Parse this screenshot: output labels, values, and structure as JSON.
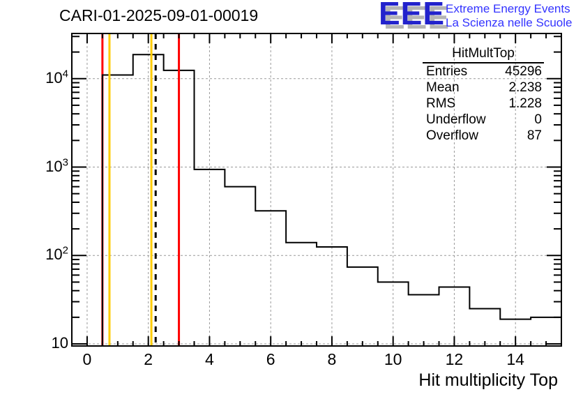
{
  "title": "CARI-01-2025-09-01-00019",
  "logo": {
    "acronym": "EEE",
    "line1": "Extreme Energy Events",
    "line2": "La Scienza nelle Scuole",
    "acronym_color": "#2222cc",
    "shadow_color": "#b5b5b5",
    "text_color": "#3333ff"
  },
  "stats": {
    "title": "HitMultTop",
    "rows": [
      {
        "label": "Entries",
        "value": "45296"
      },
      {
        "label": "Mean",
        "value": "2.238"
      },
      {
        "label": "RMS",
        "value": "1.228"
      },
      {
        "label": "Underflow",
        "value": "0"
      },
      {
        "label": "Overflow",
        "value": "87"
      }
    ]
  },
  "chart_data": {
    "type": "bar",
    "subtype": "step-histogram",
    "title": "CARI-01-2025-09-01-00019",
    "xlabel": "Hit multiplicity Top",
    "ylabel": "",
    "x_range": [
      -0.5,
      15.5
    ],
    "y_scale": "log",
    "y_range": [
      9.5,
      32000
    ],
    "bin_width": 1,
    "bin_centers": [
      0,
      1,
      2,
      3,
      4,
      5,
      6,
      7,
      8,
      9,
      10,
      11,
      12,
      13,
      14,
      15
    ],
    "counts": [
      0,
      11000,
      18700,
      12400,
      940,
      600,
      320,
      140,
      125,
      74,
      50,
      36,
      44,
      25,
      19,
      20
    ],
    "grid": true,
    "grid_color": "#999999",
    "line_color": "#000000",
    "x_ticks": [
      0,
      2,
      4,
      6,
      8,
      10,
      12,
      14
    ],
    "x_tick_labels": [
      "0",
      "2",
      "4",
      "6",
      "8",
      "10",
      "12",
      "14"
    ],
    "x_minor_step": 0.5,
    "y_ticks": [
      {
        "value": 10,
        "base": "10",
        "exp": ""
      },
      {
        "value": 100,
        "base": "10",
        "exp": "2"
      },
      {
        "value": 1000,
        "base": "10",
        "exp": "3"
      },
      {
        "value": 10000,
        "base": "10",
        "exp": "4"
      }
    ],
    "marker_lines": [
      {
        "x": 0.5,
        "color": "#ff0000",
        "style": "solid",
        "layer": "under"
      },
      {
        "x": 0.73,
        "color": "#ffcc00",
        "style": "solid",
        "layer": "over"
      },
      {
        "x": 2.1,
        "color": "#ffcc00",
        "style": "solid",
        "layer": "over"
      },
      {
        "x": 2.24,
        "color": "#000000",
        "style": "dashed",
        "layer": "over"
      },
      {
        "x": 3.0,
        "color": "#ff0000",
        "style": "solid",
        "layer": "over"
      }
    ]
  }
}
